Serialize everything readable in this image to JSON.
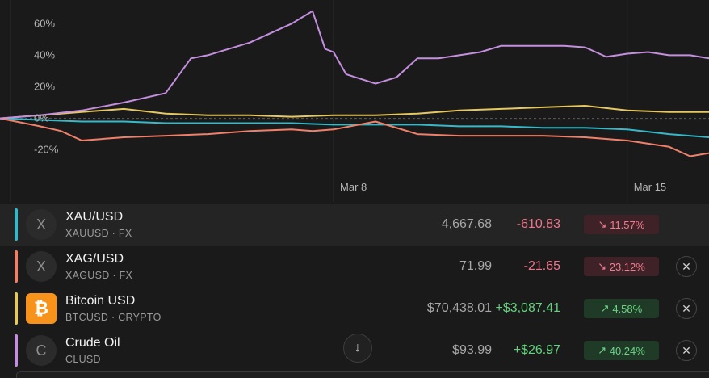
{
  "chart_data": {
    "type": "line",
    "yticks": [
      "60%",
      "40%",
      "20%",
      "0%",
      "-20%"
    ],
    "ytick_values": [
      60,
      40,
      20,
      0,
      -20
    ],
    "ylim": [
      -35,
      75
    ],
    "xticks": [
      "Mar 8",
      "Mar 15"
    ],
    "xtick_values": [
      8,
      15
    ],
    "xlim": [
      0.05,
      16.95
    ],
    "grid": true,
    "series": [
      {
        "name": "XAU/USD",
        "color": "#35b9c9",
        "x": [
          0.05,
          1,
          2,
          3,
          4,
          5,
          6,
          7,
          8,
          9,
          10,
          11,
          12,
          13,
          14,
          15,
          16,
          16.95
        ],
        "y": [
          0,
          -1,
          -2,
          -2,
          -3,
          -3,
          -3,
          -3,
          -4,
          -4,
          -4,
          -5,
          -5,
          -6,
          -6,
          -7,
          -10,
          -12
        ]
      },
      {
        "name": "XAG/USD",
        "color": "#f0806a",
        "x": [
          0.05,
          1,
          1.5,
          2,
          3,
          4,
          5,
          6,
          7,
          7.5,
          8,
          9,
          10,
          11,
          12,
          13,
          14,
          15,
          16,
          16.5,
          16.95
        ],
        "y": [
          0,
          -5,
          -8,
          -14,
          -12,
          -11,
          -10,
          -8,
          -7,
          -8,
          -7,
          -2,
          -10,
          -11,
          -11,
          -11,
          -12,
          -14,
          -18,
          -24,
          -22
        ]
      },
      {
        "name": "Bitcoin USD",
        "color": "#e5c860",
        "x": [
          0.05,
          1,
          2,
          3,
          4,
          5,
          6,
          7,
          8,
          9,
          10,
          11,
          12,
          13,
          14,
          15,
          16,
          16.95
        ],
        "y": [
          0,
          2,
          4,
          6,
          3,
          2,
          2,
          1,
          2,
          2,
          3,
          5,
          6,
          7,
          8,
          5,
          4,
          4
        ]
      },
      {
        "name": "Crude Oil",
        "color": "#c58fe0",
        "x": [
          0.05,
          1,
          2,
          3,
          4,
          4.6,
          5,
          6,
          7,
          7.5,
          7.8,
          8,
          8.3,
          9,
          9.5,
          10,
          10.5,
          11,
          11.5,
          12,
          12.5,
          13,
          13.5,
          14,
          14.5,
          15,
          15.5,
          16,
          16.5,
          16.95
        ],
        "y": [
          0,
          2,
          5,
          10,
          16,
          38,
          40,
          48,
          60,
          68,
          44,
          42,
          28,
          22,
          26,
          38,
          38,
          40,
          42,
          46,
          46,
          46,
          46,
          45,
          39,
          41,
          42,
          40,
          40,
          38
        ]
      }
    ]
  },
  "assets": [
    {
      "logo": "X",
      "name": "XAU/USD",
      "sub": "XAUUSD · FX",
      "price": "4,667.68",
      "change": "-610.83",
      "pct": "11.57%",
      "arrow": "↘",
      "color": "#35b9c9",
      "close": ""
    },
    {
      "logo": "X",
      "name": "XAG/USD",
      "sub": "XAGUSD · FX",
      "price": "71.99",
      "change": "-21.65",
      "pct": "23.12%",
      "arrow": "↘",
      "color": "#f0806a",
      "close": "✕"
    },
    {
      "logo": "₿",
      "name": "Bitcoin USD",
      "sub": "BTCUSD · CRYPTO",
      "price": "$70,438.01",
      "change": "+$3,087.41",
      "pct": "4.58%",
      "arrow": "↗",
      "color": "#e5c860",
      "close": "✕"
    },
    {
      "logo": "C",
      "name": "Crude Oil",
      "sub": "CLUSD",
      "price": "$93.99",
      "change": "+$26.97",
      "pct": "40.24%",
      "arrow": "↗",
      "color": "#c58fe0",
      "close": "✕"
    }
  ],
  "controls": {
    "scroll_down_icon": "↓",
    "close_icon": "close-icon",
    "arrow_icons": [
      "trend-down-icon",
      "trend-up-icon"
    ]
  }
}
